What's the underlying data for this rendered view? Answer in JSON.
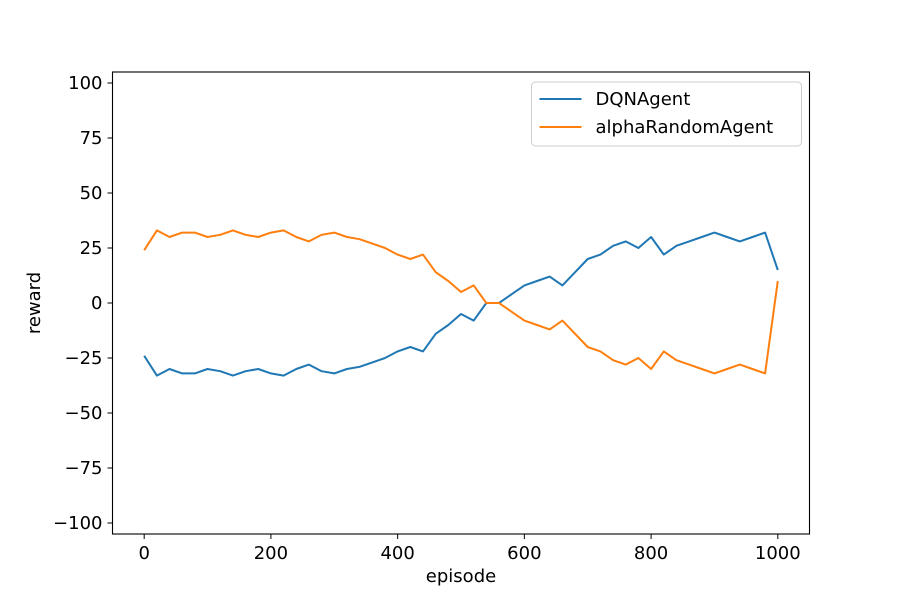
{
  "chart_data": {
    "type": "line",
    "title": "",
    "xlabel": "episode",
    "ylabel": "reward",
    "xlim": [
      -50,
      1050
    ],
    "ylim": [
      -105,
      105
    ],
    "x_ticks": [
      0,
      200,
      400,
      600,
      800,
      1000
    ],
    "y_ticks": [
      -100,
      -75,
      -50,
      -25,
      0,
      25,
      50,
      75,
      100
    ],
    "x_tick_labels": [
      "0",
      "200",
      "400",
      "600",
      "800",
      "1000"
    ],
    "y_tick_labels": [
      "−100",
      "−75",
      "−50",
      "−25",
      "0",
      "25",
      "50",
      "75",
      "100"
    ],
    "grid": false,
    "legend_position": "top-right",
    "series": [
      {
        "name": "DQNAgent",
        "color": "#1f77b4",
        "x": [
          0,
          20,
          40,
          60,
          80,
          100,
          120,
          140,
          160,
          180,
          200,
          220,
          240,
          260,
          280,
          300,
          320,
          340,
          360,
          380,
          400,
          420,
          440,
          460,
          480,
          500,
          520,
          540,
          560,
          580,
          600,
          620,
          640,
          660,
          680,
          700,
          720,
          740,
          760,
          780,
          800,
          820,
          840,
          860,
          880,
          900,
          920,
          940,
          960,
          980,
          1000
        ],
        "y": [
          -24,
          -33,
          -30,
          -32,
          -32,
          -30,
          -31,
          -33,
          -31,
          -30,
          -32,
          -33,
          -30,
          -28,
          -31,
          -32,
          -30,
          -29,
          -27,
          -25,
          -22,
          -20,
          -22,
          -14,
          -10,
          -5,
          -8,
          0,
          0,
          4,
          8,
          10,
          12,
          8,
          14,
          20,
          22,
          26,
          28,
          25,
          30,
          22,
          26,
          28,
          30,
          32,
          30,
          28,
          30,
          32,
          15
        ]
      },
      {
        "name": "alphaRandomAgent",
        "color": "#ff7f0e",
        "x": [
          0,
          20,
          40,
          60,
          80,
          100,
          120,
          140,
          160,
          180,
          200,
          220,
          240,
          260,
          280,
          300,
          320,
          340,
          360,
          380,
          400,
          420,
          440,
          460,
          480,
          500,
          520,
          540,
          560,
          580,
          600,
          620,
          640,
          660,
          680,
          700,
          720,
          740,
          760,
          780,
          800,
          820,
          840,
          860,
          880,
          900,
          920,
          940,
          960,
          980,
          1000
        ],
        "y": [
          24,
          33,
          30,
          32,
          32,
          30,
          31,
          33,
          31,
          30,
          32,
          33,
          30,
          28,
          31,
          32,
          30,
          29,
          27,
          25,
          22,
          20,
          22,
          14,
          10,
          5,
          8,
          0,
          0,
          -4,
          -8,
          -10,
          -12,
          -8,
          -14,
          -20,
          -22,
          -26,
          -28,
          -25,
          -30,
          -22,
          -26,
          -28,
          -30,
          -32,
          -30,
          -28,
          -30,
          -32,
          10
        ]
      }
    ]
  }
}
